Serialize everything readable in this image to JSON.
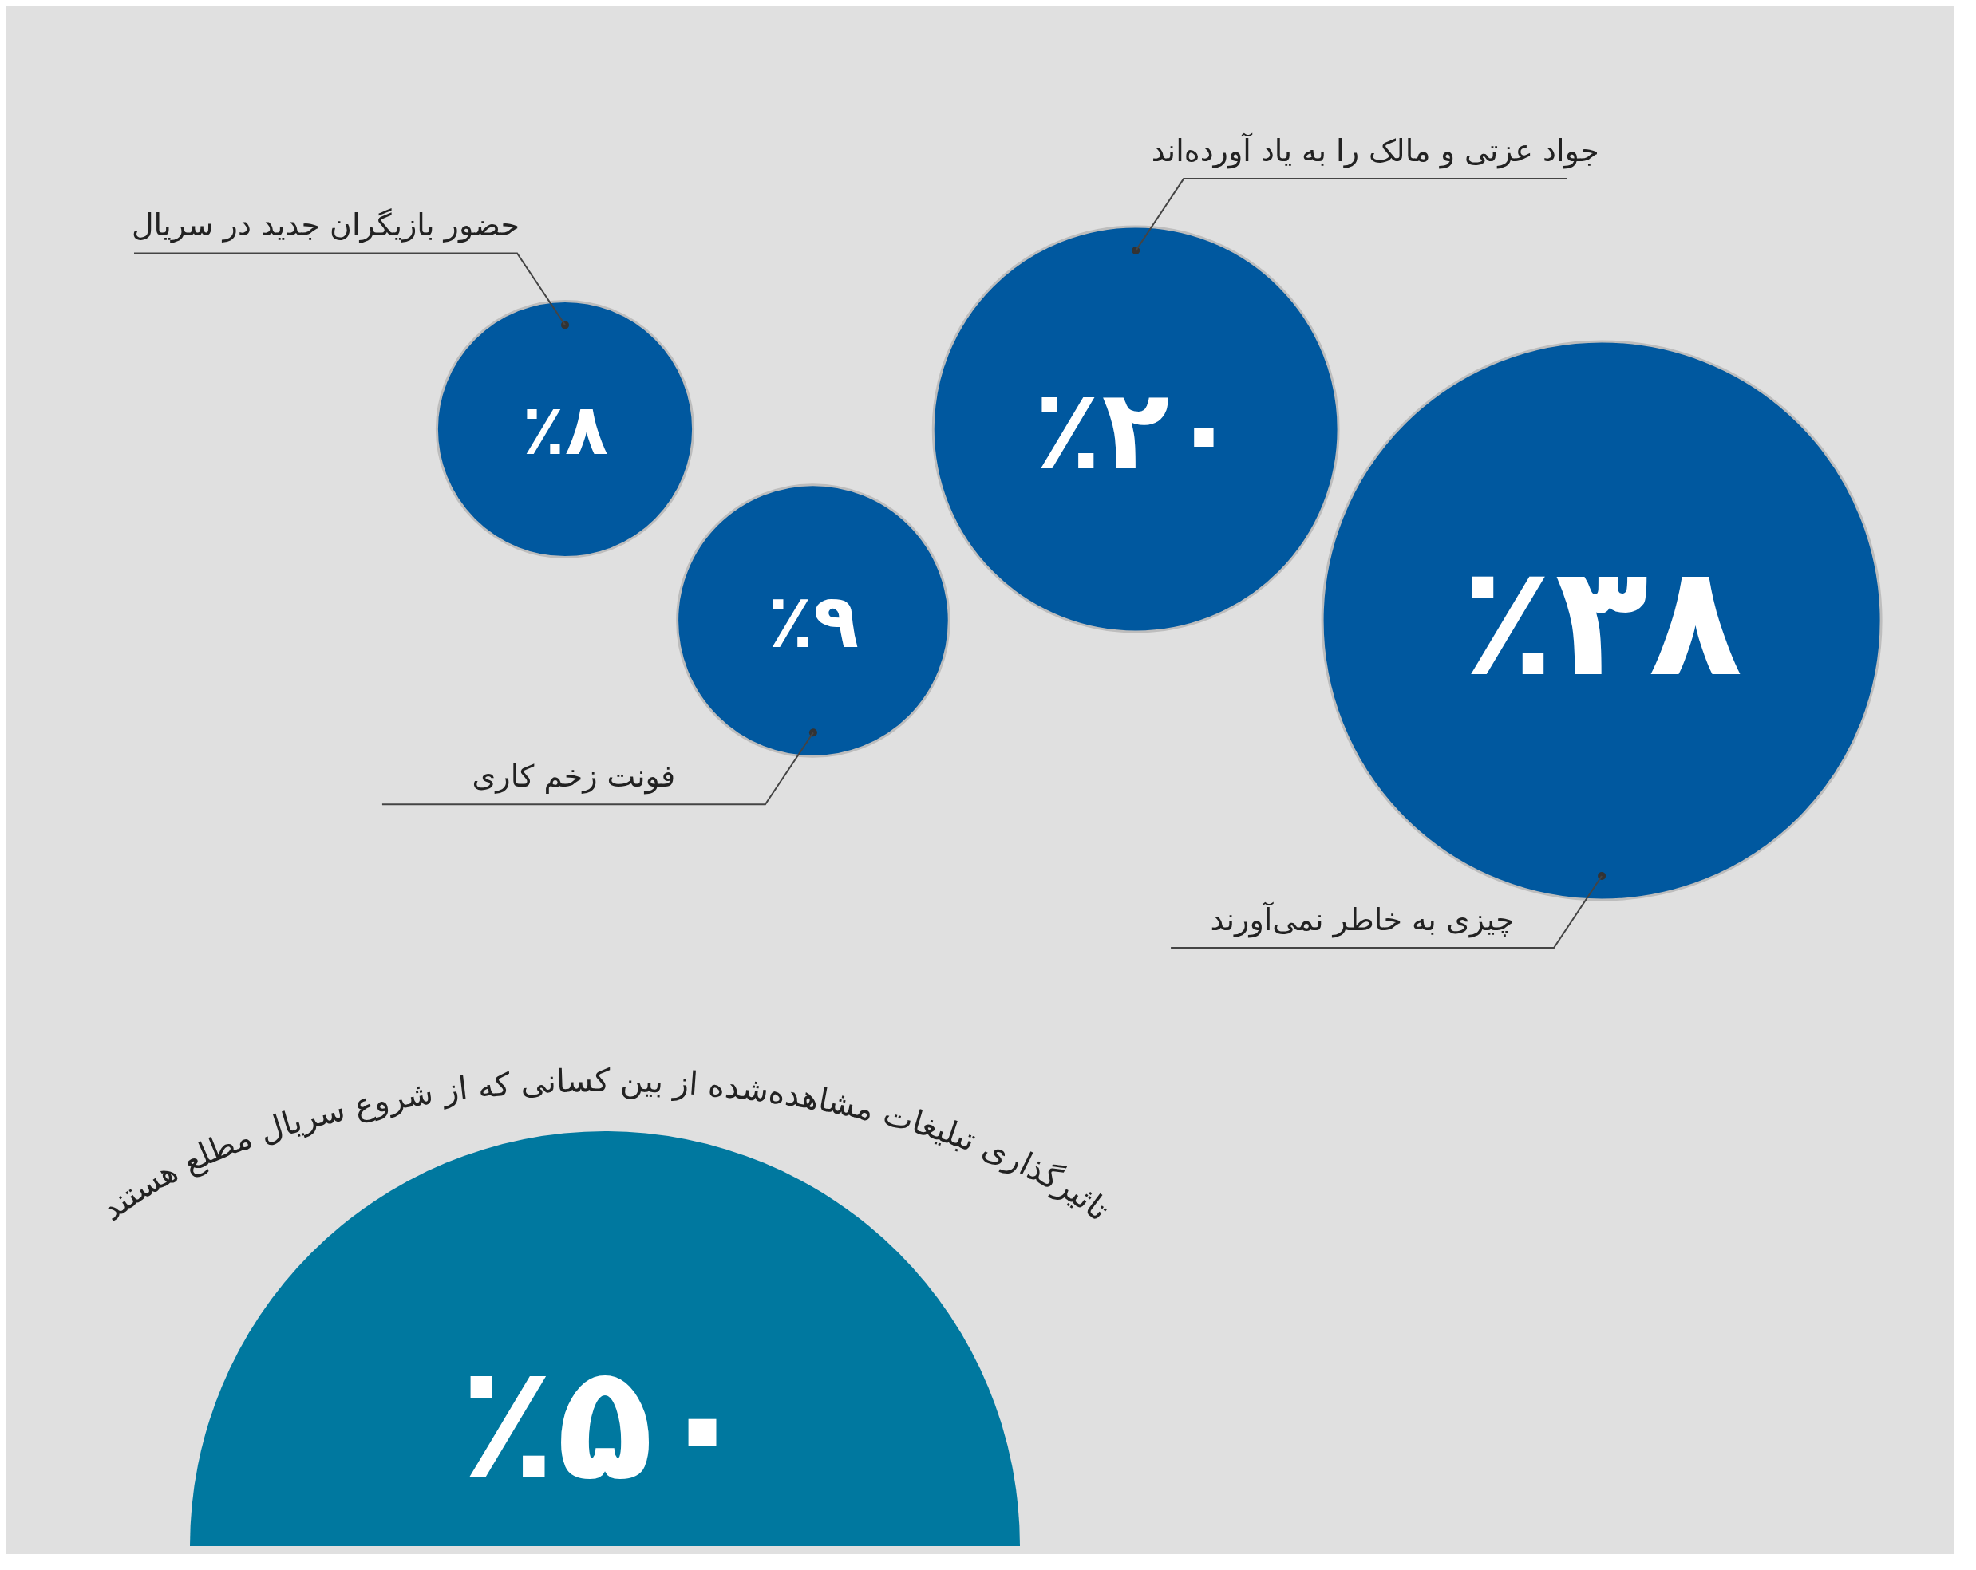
{
  "chart_data": [
    {
      "type": "other",
      "categories": [
        "حضور بازیگران جدید در سریال",
        "فونت زخم کاری",
        "جواد عزتی و مالک را به یاد آورده‌اند",
        "چیزی به خاطر نمی‌آورند"
      ],
      "values": [
        8,
        9,
        20,
        38
      ],
      "value_labels": [
        "٪۸",
        "٪۹",
        "٪۲۰",
        "٪۳۸"
      ],
      "color": "#00589f"
    },
    {
      "type": "other",
      "title": "تاثیرگذاری تبلیغات مشاهده‌شده از بین کسانی که از شروع سریال مطلع هستند",
      "values": [
        50
      ],
      "value_labels": [
        "٪۵۰"
      ],
      "color": "#00789f"
    }
  ]
}
